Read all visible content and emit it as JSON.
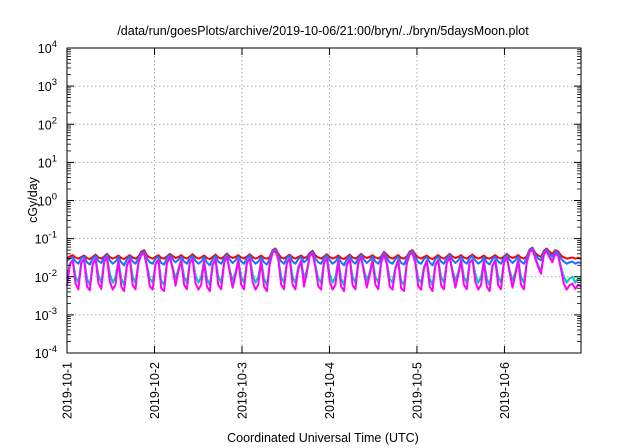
{
  "chart_data": {
    "type": "line",
    "title": "/data/run/goesPlots/archive/2019-10-06/21:00/bryn/../bryn/5daysMoon.plot",
    "xlabel": "Coordinated Universal Time (UTC)",
    "ylabel": "cGy/day",
    "y_scale": "log",
    "ylim": [
      0.0001,
      10000
    ],
    "y_ticks": [
      {
        "value": 0.0001,
        "base": "10",
        "exp": "-4"
      },
      {
        "value": 0.001,
        "base": "10",
        "exp": "-3"
      },
      {
        "value": 0.01,
        "base": "10",
        "exp": "-2"
      },
      {
        "value": 0.1,
        "base": "10",
        "exp": "-1"
      },
      {
        "value": 1,
        "base": "10",
        "exp": "0"
      },
      {
        "value": 10,
        "base": "10",
        "exp": "1"
      },
      {
        "value": 100,
        "base": "10",
        "exp": "2"
      },
      {
        "value": 1000,
        "base": "10",
        "exp": "3"
      },
      {
        "value": 10000,
        "base": "10",
        "exp": "4"
      }
    ],
    "xlim": [
      "2019-10-01",
      "2019-10-06 21:00"
    ],
    "x_ticks": [
      "2019-10-1",
      "2019-10-2",
      "2019-10-3",
      "2019-10-4",
      "2019-10-5",
      "2019-10-6"
    ],
    "x_tick_days": [
      0,
      1,
      2,
      3,
      4,
      5
    ],
    "x_span_days": 5.875,
    "grid": true,
    "series": [
      {
        "color": "#ff0000",
        "base": 0.031,
        "values": [
          0.031,
          0.034,
          0.037,
          0.032,
          0.03,
          0.033,
          0.036,
          0.031,
          0.029,
          0.033,
          0.038,
          0.032,
          0.03,
          0.034,
          0.04,
          0.033,
          0.03,
          0.032,
          0.036,
          0.031,
          0.029,
          0.033,
          0.037,
          0.032,
          0.03,
          0.034,
          0.045,
          0.05,
          0.036,
          0.032,
          0.03,
          0.033,
          0.037,
          0.031,
          0.03,
          0.034,
          0.04,
          0.035,
          0.031,
          0.033,
          0.037,
          0.032,
          0.03,
          0.034,
          0.039,
          0.033,
          0.03,
          0.032,
          0.036,
          0.031,
          0.029,
          0.033,
          0.038,
          0.032,
          0.03,
          0.034,
          0.041,
          0.034,
          0.031,
          0.033,
          0.037,
          0.032,
          0.03,
          0.034,
          0.039,
          0.033,
          0.03,
          0.032,
          0.036,
          0.031,
          0.03,
          0.033,
          0.05,
          0.055,
          0.04,
          0.032,
          0.03,
          0.034,
          0.038,
          0.032,
          0.03,
          0.033,
          0.036,
          0.031,
          0.033,
          0.042,
          0.048,
          0.036,
          0.032,
          0.03,
          0.034,
          0.039,
          0.033,
          0.03,
          0.032,
          0.036,
          0.031,
          0.029,
          0.033,
          0.038,
          0.032,
          0.03,
          0.034,
          0.04,
          0.034,
          0.031,
          0.033,
          0.037,
          0.032,
          0.03,
          0.034,
          0.045,
          0.038,
          0.032,
          0.03,
          0.033,
          0.037,
          0.031,
          0.03,
          0.034,
          0.046,
          0.05,
          0.038,
          0.032,
          0.03,
          0.033,
          0.036,
          0.031,
          0.029,
          0.033,
          0.037,
          0.032,
          0.03,
          0.034,
          0.04,
          0.034,
          0.031,
          0.033,
          0.037,
          0.032,
          0.03,
          0.034,
          0.038,
          0.033,
          0.03,
          0.032,
          0.036,
          0.031,
          0.03,
          0.033,
          0.037,
          0.032,
          0.03,
          0.034,
          0.04,
          0.034,
          0.031,
          0.033,
          0.037,
          0.032,
          0.03,
          0.034,
          0.052,
          0.058,
          0.042,
          0.036,
          0.033,
          0.048,
          0.055,
          0.045,
          0.04,
          0.05,
          0.046,
          0.036,
          0.032,
          0.03,
          0.031,
          0.032,
          0.03,
          0.031,
          0.03
        ]
      },
      {
        "color": "#1f6fff",
        "base": 0.026,
        "values": [
          0.026,
          0.03,
          0.033,
          0.025,
          0.022,
          0.031,
          0.034,
          0.024,
          0.021,
          0.03,
          0.036,
          0.026,
          0.023,
          0.032,
          0.038,
          0.027,
          0.022,
          0.025,
          0.033,
          0.024,
          0.02,
          0.029,
          0.035,
          0.025,
          0.022,
          0.031,
          0.042,
          0.046,
          0.03,
          0.024,
          0.022,
          0.03,
          0.034,
          0.023,
          0.021,
          0.031,
          0.038,
          0.029,
          0.024,
          0.028,
          0.034,
          0.025,
          0.022,
          0.031,
          0.036,
          0.026,
          0.022,
          0.025,
          0.033,
          0.024,
          0.02,
          0.029,
          0.035,
          0.025,
          0.022,
          0.031,
          0.039,
          0.028,
          0.023,
          0.027,
          0.034,
          0.025,
          0.022,
          0.031,
          0.037,
          0.027,
          0.022,
          0.025,
          0.033,
          0.024,
          0.021,
          0.03,
          0.048,
          0.052,
          0.036,
          0.025,
          0.022,
          0.031,
          0.036,
          0.025,
          0.022,
          0.029,
          0.033,
          0.024,
          0.028,
          0.04,
          0.045,
          0.03,
          0.024,
          0.022,
          0.031,
          0.037,
          0.027,
          0.022,
          0.025,
          0.033,
          0.024,
          0.02,
          0.029,
          0.036,
          0.025,
          0.022,
          0.031,
          0.038,
          0.028,
          0.023,
          0.027,
          0.034,
          0.025,
          0.022,
          0.031,
          0.043,
          0.032,
          0.024,
          0.022,
          0.029,
          0.034,
          0.023,
          0.021,
          0.031,
          0.044,
          0.047,
          0.033,
          0.024,
          0.022,
          0.029,
          0.033,
          0.024,
          0.02,
          0.029,
          0.034,
          0.025,
          0.022,
          0.031,
          0.038,
          0.028,
          0.023,
          0.027,
          0.034,
          0.025,
          0.022,
          0.031,
          0.035,
          0.027,
          0.022,
          0.025,
          0.033,
          0.024,
          0.021,
          0.029,
          0.034,
          0.025,
          0.022,
          0.031,
          0.038,
          0.028,
          0.023,
          0.027,
          0.034,
          0.025,
          0.022,
          0.031,
          0.05,
          0.056,
          0.038,
          0.03,
          0.027,
          0.045,
          0.052,
          0.04,
          0.034,
          0.047,
          0.042,
          0.03,
          0.025,
          0.022,
          0.024,
          0.025,
          0.022,
          0.024,
          0.023
        ]
      },
      {
        "color": "#00c8b4",
        "base": 0.009,
        "values": [
          0.009,
          0.022,
          0.028,
          0.01,
          0.007,
          0.024,
          0.03,
          0.009,
          0.006,
          0.022,
          0.031,
          0.011,
          0.007,
          0.025,
          0.034,
          0.012,
          0.007,
          0.01,
          0.027,
          0.009,
          0.006,
          0.021,
          0.03,
          0.01,
          0.007,
          0.024,
          0.038,
          0.042,
          0.02,
          0.009,
          0.007,
          0.022,
          0.029,
          0.008,
          0.006,
          0.023,
          0.034,
          0.018,
          0.009,
          0.016,
          0.028,
          0.01,
          0.007,
          0.024,
          0.031,
          0.011,
          0.007,
          0.01,
          0.027,
          0.009,
          0.006,
          0.021,
          0.03,
          0.01,
          0.007,
          0.024,
          0.035,
          0.015,
          0.008,
          0.013,
          0.028,
          0.01,
          0.007,
          0.024,
          0.032,
          0.012,
          0.007,
          0.01,
          0.027,
          0.009,
          0.006,
          0.022,
          0.044,
          0.048,
          0.03,
          0.01,
          0.007,
          0.024,
          0.031,
          0.01,
          0.007,
          0.018,
          0.027,
          0.009,
          0.015,
          0.036,
          0.041,
          0.02,
          0.009,
          0.007,
          0.024,
          0.032,
          0.012,
          0.007,
          0.01,
          0.027,
          0.009,
          0.006,
          0.021,
          0.031,
          0.01,
          0.007,
          0.024,
          0.034,
          0.015,
          0.008,
          0.013,
          0.028,
          0.01,
          0.007,
          0.024,
          0.039,
          0.024,
          0.009,
          0.007,
          0.018,
          0.028,
          0.008,
          0.006,
          0.023,
          0.04,
          0.043,
          0.025,
          0.009,
          0.007,
          0.018,
          0.027,
          0.009,
          0.006,
          0.021,
          0.028,
          0.01,
          0.007,
          0.024,
          0.034,
          0.015,
          0.008,
          0.013,
          0.028,
          0.01,
          0.007,
          0.024,
          0.029,
          0.012,
          0.007,
          0.01,
          0.027,
          0.009,
          0.006,
          0.02,
          0.028,
          0.01,
          0.007,
          0.024,
          0.034,
          0.015,
          0.008,
          0.013,
          0.028,
          0.01,
          0.007,
          0.024,
          0.046,
          0.052,
          0.032,
          0.02,
          0.014,
          0.04,
          0.048,
          0.034,
          0.026,
          0.042,
          0.036,
          0.018,
          0.01,
          0.007,
          0.009,
          0.01,
          0.007,
          0.009,
          0.008
        ]
      },
      {
        "color": "#ff00ff",
        "base": 0.0058,
        "values": [
          0.0058,
          0.021,
          0.027,
          0.0065,
          0.0047,
          0.023,
          0.029,
          0.0055,
          0.0044,
          0.021,
          0.03,
          0.0068,
          0.0048,
          0.024,
          0.033,
          0.0075,
          0.0046,
          0.0062,
          0.026,
          0.0055,
          0.0042,
          0.02,
          0.029,
          0.006,
          0.0047,
          0.023,
          0.037,
          0.041,
          0.018,
          0.0056,
          0.0046,
          0.021,
          0.028,
          0.005,
          0.0042,
          0.022,
          0.033,
          0.016,
          0.0058,
          0.014,
          0.027,
          0.0062,
          0.0047,
          0.023,
          0.03,
          0.0068,
          0.0046,
          0.0062,
          0.026,
          0.0055,
          0.0042,
          0.02,
          0.029,
          0.006,
          0.0047,
          0.023,
          0.034,
          0.013,
          0.0052,
          0.011,
          0.027,
          0.0062,
          0.0047,
          0.023,
          0.031,
          0.0075,
          0.0046,
          0.0062,
          0.026,
          0.0055,
          0.0042,
          0.021,
          0.043,
          0.047,
          0.028,
          0.0062,
          0.0047,
          0.023,
          0.03,
          0.0062,
          0.0047,
          0.016,
          0.026,
          0.0055,
          0.013,
          0.035,
          0.04,
          0.018,
          0.0056,
          0.0046,
          0.023,
          0.031,
          0.0075,
          0.0046,
          0.0062,
          0.026,
          0.0055,
          0.0042,
          0.02,
          0.03,
          0.006,
          0.0047,
          0.023,
          0.033,
          0.013,
          0.0052,
          0.011,
          0.027,
          0.0062,
          0.0047,
          0.023,
          0.038,
          0.022,
          0.0056,
          0.0046,
          0.016,
          0.027,
          0.005,
          0.0042,
          0.022,
          0.039,
          0.042,
          0.023,
          0.0056,
          0.0046,
          0.016,
          0.026,
          0.0055,
          0.0042,
          0.02,
          0.027,
          0.006,
          0.0047,
          0.023,
          0.033,
          0.013,
          0.0052,
          0.011,
          0.027,
          0.0062,
          0.0047,
          0.023,
          0.028,
          0.0075,
          0.0046,
          0.0062,
          0.026,
          0.0055,
          0.0042,
          0.019,
          0.027,
          0.006,
          0.0047,
          0.023,
          0.033,
          0.013,
          0.0052,
          0.011,
          0.027,
          0.0062,
          0.0047,
          0.023,
          0.045,
          0.051,
          0.03,
          0.018,
          0.012,
          0.039,
          0.047,
          0.032,
          0.024,
          0.041,
          0.035,
          0.016,
          0.0065,
          0.0046,
          0.006,
          0.0066,
          0.0048,
          0.0062,
          0.0055
        ]
      }
    ]
  }
}
